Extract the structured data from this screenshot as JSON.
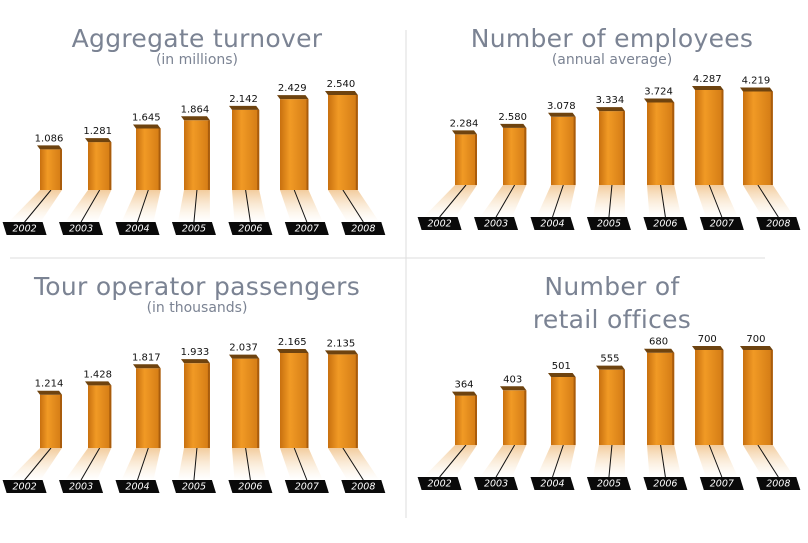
{
  "chart_data": [
    {
      "type": "bar",
      "title": "Aggregate turnover",
      "subtitle": "(in millions)",
      "color": "#e8901e",
      "categories": [
        "2002",
        "2003",
        "2004",
        "2005",
        "2006",
        "2007",
        "2008"
      ],
      "values": [
        1086,
        1281,
        1645,
        1864,
        2142,
        2429,
        2540
      ],
      "value_labels": [
        "1.086",
        "1.281",
        "1.645",
        "1.864",
        "2.142",
        "2.429",
        "2.540"
      ]
    },
    {
      "type": "bar",
      "title": "Number of employees",
      "subtitle": "(annual average)",
      "color": "#e8901e",
      "categories": [
        "2002",
        "2003",
        "2004",
        "2005",
        "2006",
        "2007",
        "2008"
      ],
      "values": [
        2284,
        2580,
        3078,
        3334,
        3724,
        4287,
        4219
      ],
      "value_labels": [
        "2.284",
        "2.580",
        "3.078",
        "3.334",
        "3.724",
        "4.287",
        "4.219"
      ]
    },
    {
      "type": "bar",
      "title": "Tour operator passengers",
      "subtitle": "(in thousands)",
      "color": "#e8901e",
      "categories": [
        "2002",
        "2003",
        "2004",
        "2005",
        "2006",
        "2007",
        "2008"
      ],
      "values": [
        1214,
        1428,
        1817,
        1933,
        2037,
        2165,
        2135
      ],
      "value_labels": [
        "1.214",
        "1.428",
        "1.817",
        "1.933",
        "2.037",
        "2.165",
        "2.135"
      ]
    },
    {
      "type": "bar",
      "title": "Number of retail offices",
      "color": "#e8901e",
      "categories": [
        "2002",
        "2003",
        "2004",
        "2005",
        "2006",
        "2007",
        "2008"
      ],
      "values": [
        364,
        403,
        501,
        555,
        680,
        700,
        700
      ]
    }
  ]
}
